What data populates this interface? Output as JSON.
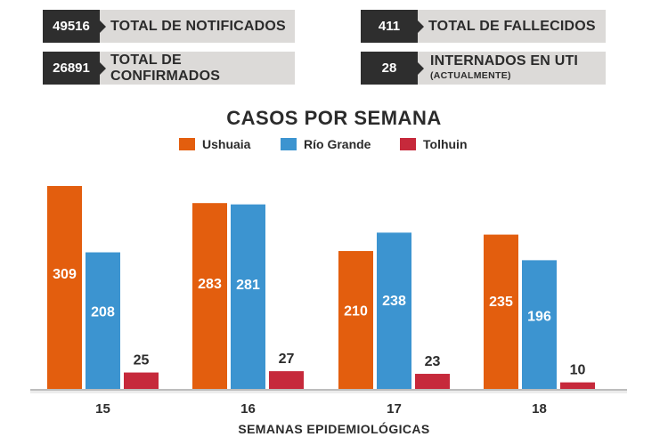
{
  "stats": [
    {
      "value": "49516",
      "label": "TOTAL DE NOTIFICADOS"
    },
    {
      "value": "411",
      "label": "TOTAL DE FALLECIDOS"
    },
    {
      "value": "26891",
      "label": "TOTAL DE CONFIRMADOS"
    },
    {
      "value": "28",
      "label": "INTERNADOS EN UTI",
      "sublabel": "(ACTUALMENTE)"
    }
  ],
  "colors": {
    "ushuaia": "#e35e0e",
    "rio_grande": "#3c94d0",
    "tolhuin": "#c6293b"
  },
  "chart_data": {
    "type": "bar",
    "title": "CASOS POR SEMANA",
    "xlabel": "SEMANAS EPIDEMIOLÓGICAS",
    "ylabel": "",
    "categories": [
      "15",
      "16",
      "17",
      "18"
    ],
    "series": [
      {
        "name": "Ushuaia",
        "values": [
          309,
          283,
          210,
          235
        ]
      },
      {
        "name": "Río Grande",
        "values": [
          208,
          281,
          238,
          196
        ]
      },
      {
        "name": "Tolhuin",
        "values": [
          25,
          27,
          23,
          10
        ]
      }
    ],
    "ylim": [
      0,
      309
    ],
    "grid": false,
    "legend": "top-center"
  }
}
